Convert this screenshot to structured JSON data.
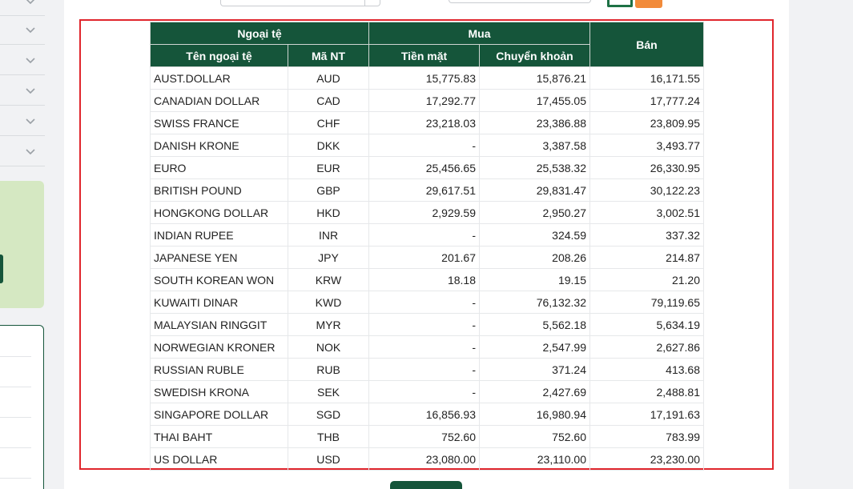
{
  "table": {
    "header": {
      "group_currency": "Ngoại tệ",
      "group_buy": "Mua",
      "sell": "Bán",
      "name": "Tên ngoại tệ",
      "code": "Mã NT",
      "cash": "Tiền mặt",
      "transfer": "Chuyển khoản"
    },
    "rows": [
      {
        "name": "AUST.DOLLAR",
        "code": "AUD",
        "cash": "15,775.83",
        "transfer": "15,876.21",
        "sell": "16,171.55"
      },
      {
        "name": "CANADIAN DOLLAR",
        "code": "CAD",
        "cash": "17,292.77",
        "transfer": "17,455.05",
        "sell": "17,777.24"
      },
      {
        "name": "SWISS FRANCE",
        "code": "CHF",
        "cash": "23,218.03",
        "transfer": "23,386.88",
        "sell": "23,809.95"
      },
      {
        "name": "DANISH KRONE",
        "code": "DKK",
        "cash": "-",
        "transfer": "3,387.58",
        "sell": "3,493.77"
      },
      {
        "name": "EURO",
        "code": "EUR",
        "cash": "25,456.65",
        "transfer": "25,538.32",
        "sell": "26,330.95"
      },
      {
        "name": "BRITISH POUND",
        "code": "GBP",
        "cash": "29,617.51",
        "transfer": "29,831.47",
        "sell": "30,122.23"
      },
      {
        "name": "HONGKONG DOLLAR",
        "code": "HKD",
        "cash": "2,929.59",
        "transfer": "2,950.27",
        "sell": "3,002.51"
      },
      {
        "name": "INDIAN RUPEE",
        "code": "INR",
        "cash": "-",
        "transfer": "324.59",
        "sell": "337.32"
      },
      {
        "name": "JAPANESE YEN",
        "code": "JPY",
        "cash": "201.67",
        "transfer": "208.26",
        "sell": "214.87"
      },
      {
        "name": "SOUTH KOREAN WON",
        "code": "KRW",
        "cash": "18.18",
        "transfer": "19.15",
        "sell": "21.20"
      },
      {
        "name": "KUWAITI DINAR",
        "code": "KWD",
        "cash": "-",
        "transfer": "76,132.32",
        "sell": "79,119.65"
      },
      {
        "name": "MALAYSIAN RINGGIT",
        "code": "MYR",
        "cash": "-",
        "transfer": "5,562.18",
        "sell": "5,634.19"
      },
      {
        "name": "NORWEGIAN KRONER",
        "code": "NOK",
        "cash": "-",
        "transfer": "2,547.99",
        "sell": "2,627.86"
      },
      {
        "name": "RUSSIAN RUBLE",
        "code": "RUB",
        "cash": "-",
        "transfer": "371.24",
        "sell": "413.68"
      },
      {
        "name": "SWEDISH KRONA",
        "code": "SEK",
        "cash": "-",
        "transfer": "2,427.69",
        "sell": "2,488.81"
      },
      {
        "name": "SINGAPORE DOLLAR",
        "code": "SGD",
        "cash": "16,856.93",
        "transfer": "16,980.94",
        "sell": "17,191.63"
      },
      {
        "name": "THAI BAHT",
        "code": "THB",
        "cash": "752.60",
        "transfer": "752.60",
        "sell": "783.99"
      },
      {
        "name": "US DOLLAR",
        "code": "USD",
        "cash": "23,080.00",
        "transfer": "23,110.00",
        "sell": "23,230.00"
      }
    ]
  },
  "colors": {
    "header_green": "#15553a",
    "highlight_red": "#e0262d",
    "sidebar_green": "#d5e8c2"
  },
  "icons": {
    "sidebar_chevron": "chevron-down-icon",
    "export_excel": "excel-icon"
  }
}
